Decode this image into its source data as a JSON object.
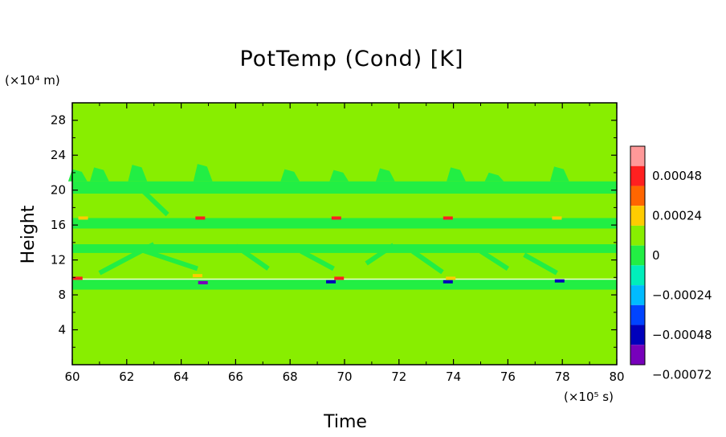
{
  "chart_data": {
    "type": "heatmap",
    "title": "PotTemp (Cond) [K]",
    "xlabel": "Time",
    "ylabel": "Height",
    "x_unit": "(×10⁵ s)",
    "y_unit": "(×10⁴ m)",
    "xlim": [
      60,
      80
    ],
    "ylim": [
      0,
      30
    ],
    "x_ticks": [
      "60",
      "62",
      "64",
      "66",
      "68",
      "70",
      "72",
      "74",
      "76",
      "78",
      "80"
    ],
    "y_ticks": [
      "4",
      "8",
      "12",
      "16",
      "20",
      "24",
      "28"
    ],
    "background_level": "0",
    "colorbar": {
      "levels": [
        "0.00048",
        "0.00024",
        "0",
        "−0.00024",
        "−0.00048",
        "−0.00072"
      ],
      "colors": [
        "#ff9999",
        "#ff2020",
        "#ff6600",
        "#ffcc00",
        "#88ee00",
        "#22ee44",
        "#00eebb",
        "#00bbff",
        "#0044ff",
        "#0000bb",
        "#7700bb"
      ]
    },
    "bands": [
      {
        "name": "upper",
        "y_from": 19.6,
        "y_to": 21.0,
        "top_bumps": [
          [
            60.2,
            22.4
          ],
          [
            61.0,
            22.6
          ],
          [
            62.4,
            22.9
          ],
          [
            64.8,
            23.0
          ],
          [
            68.0,
            22.4
          ],
          [
            69.8,
            22.3
          ],
          [
            71.5,
            22.5
          ],
          [
            74.1,
            22.6
          ],
          [
            75.5,
            22.0
          ],
          [
            77.9,
            22.7
          ]
        ]
      },
      {
        "name": "mid-upper",
        "y_from": 15.6,
        "y_to": 16.8
      },
      {
        "name": "mid",
        "y_from": 12.8,
        "y_to": 13.8
      },
      {
        "name": "lower",
        "y_from": 8.6,
        "y_to": 9.8
      }
    ],
    "hotspots": [
      {
        "x": 60.4,
        "y": 16.8,
        "level": "0.00024"
      },
      {
        "x": 64.7,
        "y": 16.8,
        "level": "0.00048"
      },
      {
        "x": 69.7,
        "y": 16.8,
        "level": "0.00048"
      },
      {
        "x": 73.8,
        "y": 16.8,
        "level": "0.00048"
      },
      {
        "x": 77.8,
        "y": 16.8,
        "level": "0.00024"
      },
      {
        "x": 60.2,
        "y": 9.9,
        "level": "0.00048"
      },
      {
        "x": 64.6,
        "y": 10.2,
        "level": "0.00024"
      },
      {
        "x": 69.8,
        "y": 9.9,
        "level": "0.00048"
      },
      {
        "x": 73.9,
        "y": 9.9,
        "level": "0.00024"
      },
      {
        "x": 64.8,
        "y": 9.4,
        "level": "−0.00072"
      },
      {
        "x": 69.5,
        "y": 9.5,
        "level": "−0.00048"
      },
      {
        "x": 73.8,
        "y": 9.5,
        "level": "−0.00048"
      },
      {
        "x": 77.9,
        "y": 9.6,
        "level": "−0.00048"
      }
    ]
  }
}
